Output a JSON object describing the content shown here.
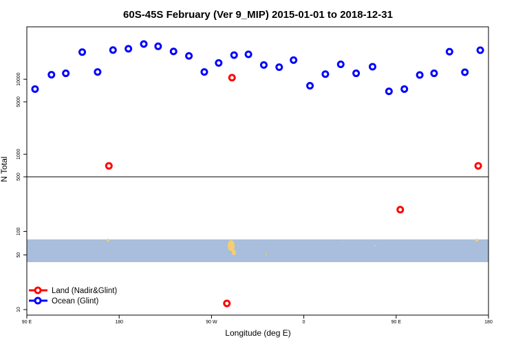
{
  "chart_data": {
    "type": "scatter",
    "title": "60S-45S February (Ver 9_MIP)   2015-01-01 to 2018-12-31",
    "xlabel": "Longitude (deg E)",
    "ylabel": "N Total",
    "x_ticks": [
      {
        "value": 90,
        "label": "90 E"
      },
      {
        "value": 180,
        "label": "180"
      },
      {
        "value": 270,
        "label": "90 W"
      },
      {
        "value": 360,
        "label": "0"
      },
      {
        "value": 450,
        "label": "90 E"
      },
      {
        "value": 540,
        "label": "180"
      }
    ],
    "xlim": [
      90,
      540
    ],
    "y_scale": "log",
    "upper_panel": {
      "ylim": [
        500,
        50000
      ],
      "ticks": [
        {
          "value": 500,
          "label": "500"
        },
        {
          "value": 1000,
          "label": "1000"
        },
        {
          "value": 5000,
          "label": "5000"
        },
        {
          "value": 10000,
          "label": "10000"
        }
      ]
    },
    "lower_panel": {
      "ylim": [
        8.5,
        500
      ],
      "ticks": [
        {
          "value": 10,
          "label": "10"
        },
        {
          "value": 50,
          "label": "50"
        },
        {
          "value": 100,
          "label": "100"
        }
      ]
    },
    "series": [
      {
        "name": "Land (Nadir&Glint)",
        "color": "#ff0000",
        "x": [
          170,
          290,
          454,
          530,
          285
        ],
        "y": [
          700,
          10500,
          190,
          700,
          12
        ]
      },
      {
        "name": "Ocean (Glint)",
        "color": "#0000ff",
        "x": [
          98,
          114,
          128,
          144,
          159,
          174,
          189,
          204,
          218,
          233,
          248,
          263,
          277,
          292,
          306,
          321,
          336,
          350,
          366,
          381,
          396,
          411,
          427,
          443,
          458,
          473,
          487,
          502,
          517,
          532
        ],
        "y": [
          7400,
          11500,
          12000,
          23000,
          12500,
          24500,
          25500,
          29500,
          27500,
          23500,
          20500,
          12500,
          16500,
          21000,
          21500,
          15500,
          14500,
          18000,
          8200,
          11700,
          15800,
          12000,
          14700,
          6900,
          7400,
          11400,
          12000,
          23300,
          12400,
          24400
        ]
      }
    ],
    "legend": {
      "position": "bottom-left"
    },
    "map_background": {
      "ocean_color": "#a8bedc",
      "land_color": "#f5cf6e"
    }
  }
}
